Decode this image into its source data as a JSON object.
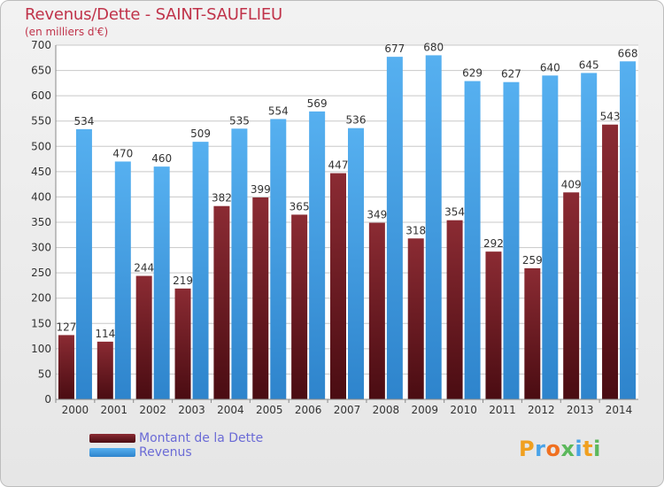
{
  "header": {
    "title": "Revenus/Dette - SAINT-SAUFLIEU",
    "subtitle": "(en milliers d'€)"
  },
  "logo": {
    "text": "Proxiti"
  },
  "colors": {
    "dette": "#7a1f24",
    "revenus": "#4aa3e8",
    "grid": "#c8c8c8",
    "axis_text": "#333333",
    "title": "#c0334a",
    "legend_text": "#6b6bd6"
  },
  "chart_data": {
    "type": "bar",
    "categories": [
      "2000",
      "2001",
      "2002",
      "2003",
      "2004",
      "2005",
      "2006",
      "2007",
      "2008",
      "2009",
      "2010",
      "2011",
      "2012",
      "2013",
      "2014"
    ],
    "series": [
      {
        "name": "Montant de la Dette",
        "values": [
          127,
          114,
          244,
          219,
          382,
          399,
          365,
          447,
          349,
          318,
          354,
          292,
          259,
          409,
          543
        ]
      },
      {
        "name": "Revenus",
        "values": [
          534,
          470,
          460,
          509,
          535,
          554,
          569,
          536,
          677,
          680,
          629,
          627,
          640,
          645,
          668
        ]
      }
    ],
    "ylim": [
      0,
      700
    ],
    "yticks": [
      0,
      50,
      100,
      150,
      200,
      250,
      300,
      350,
      400,
      450,
      500,
      550,
      600,
      650,
      700
    ],
    "grid": true,
    "legend_position": "bottom-left"
  }
}
